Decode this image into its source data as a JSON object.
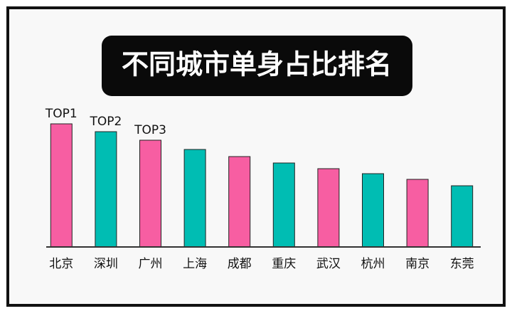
{
  "chart_data": {
    "type": "bar",
    "title": "不同城市单身占比排名",
    "categories": [
      "北京",
      "深圳",
      "广州",
      "上海",
      "成都",
      "重庆",
      "武汉",
      "杭州",
      "南京",
      "东莞"
    ],
    "values": [
      173,
      162,
      150,
      137,
      127,
      118,
      110,
      103,
      95,
      86
    ],
    "colors": [
      "#f75ea2",
      "#00bdb3",
      "#f75ea2",
      "#00bdb3",
      "#f75ea2",
      "#00bdb3",
      "#f75ea2",
      "#00bdb3",
      "#f75ea2",
      "#00bdb3"
    ],
    "annotations": [
      "TOP1",
      "TOP2",
      "TOP3"
    ],
    "ylim": [
      0,
      180
    ]
  }
}
